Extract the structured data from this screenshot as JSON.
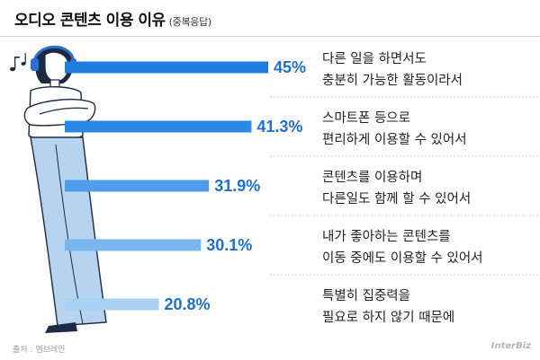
{
  "header": {
    "title": "오디오 콘텐츠 이용 이유",
    "subtitle": "(중복응답)"
  },
  "footer": {
    "source": "출처 : 엠브레인",
    "brand": "InterBiz"
  },
  "colors": {
    "bar_fill": "#1f7de0",
    "value_text": "#1f6fd0",
    "label_text": "#222222",
    "separator": "#cfcfcf",
    "figure_hair": "#1d2a44",
    "figure_skin": "#ffffff",
    "figure_pants": "#b6d3ef",
    "headphone": "#2f6fcf"
  },
  "chart_data": {
    "type": "bar",
    "orientation": "horizontal",
    "unit": "%",
    "categories": [
      "다른 일을 하면서도 충분히 가능한 활동이라서",
      "스마트폰 등으로 편리하게 이용할 수 있어서",
      "콘텐츠를 이용하며 다른일도 함께 할 수 있어서",
      "내가 좋아하는 콘텐츠를 이동 중에도 이용할 수 있어서",
      "특별히 집중력을 필요로 하지 않기 때문에"
    ],
    "values": [
      45,
      41.3,
      31.9,
      30.1,
      20.8
    ],
    "value_labels": [
      "45%",
      "41.3%",
      "31.9%",
      "30.1%",
      "20.8%"
    ],
    "label_lines": [
      [
        "다른 일을 하면서도",
        "충분히 가능한 활동이라서"
      ],
      [
        "스마트폰 등으로",
        "편리하게 이용할 수 있어서"
      ],
      [
        "콘텐츠를 이용하며",
        "다른일도 함께 할 수 있어서"
      ],
      [
        "내가 좋아하는 콘텐츠를",
        "이동 중에도 이용할 수 있어서"
      ],
      [
        "특별히 집중력을",
        "필요로 하지 않기 때문에"
      ]
    ],
    "bar_colors": [
      "#1f7de0",
      "#2a88e6",
      "#4f9de9",
      "#7ab6ee",
      "#a9d0f3"
    ],
    "grid": false,
    "legend": "none"
  }
}
